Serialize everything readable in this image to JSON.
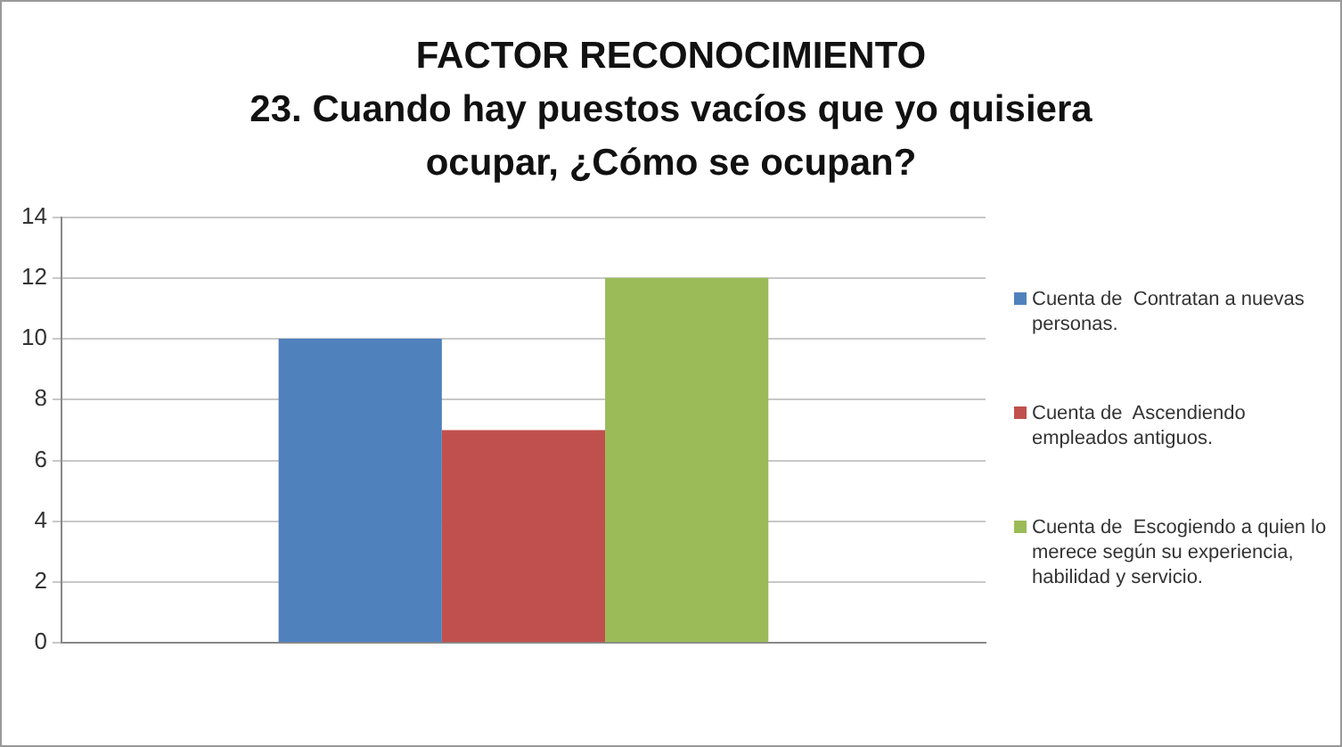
{
  "chart_data": {
    "type": "bar",
    "title": "FACTOR RECONOCIMIENTO",
    "subtitle": "23. Cuando hay puestos vacíos que yo quisiera ocupar, ¿Cómo se ocupan?",
    "categories": [
      null
    ],
    "series": [
      {
        "name": "Cuenta de  Contratan a nuevas personas.",
        "color": "#4f81bd",
        "values": [
          10
        ]
      },
      {
        "name": "Cuenta de  Ascendiendo empleados antiguos.",
        "color": "#c0504d",
        "values": [
          7
        ]
      },
      {
        "name": "Cuenta de  Escogiendo a quien lo merece según su experiencia, habilidad y servicio.",
        "color": "#9bbb59",
        "values": [
          12
        ]
      }
    ],
    "ylim": [
      0,
      14
    ],
    "yticks": [
      0,
      2,
      4,
      6,
      8,
      10,
      12,
      14
    ],
    "grid": "y",
    "legend": "right"
  }
}
